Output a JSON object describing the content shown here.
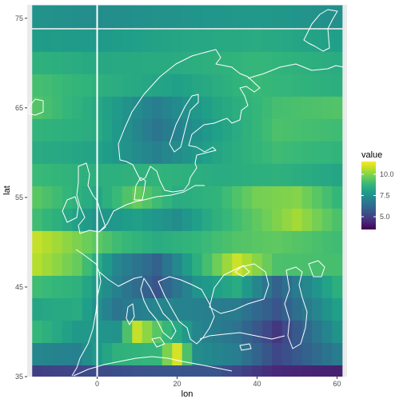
{
  "chart_data": {
    "type": "heatmap",
    "title": "",
    "xlabel": "lon",
    "ylabel": "lat",
    "xlim": [
      -17.5,
      62.5
    ],
    "ylim": [
      35,
      76.5
    ],
    "x_ticks": [
      0,
      20,
      40,
      60
    ],
    "x_tick_labels": [
      "0",
      "20",
      "40",
      "60"
    ],
    "y_ticks": [
      35,
      45,
      55,
      65,
      75
    ],
    "y_tick_labels": [
      "35",
      "45",
      "55",
      "65",
      "75"
    ],
    "cell_width_deg": 2.5,
    "cell_height_deg": 2.5,
    "x_centers": [
      -15,
      -12.5,
      -10,
      -7.5,
      -5,
      -2.5,
      0,
      2.5,
      5,
      7.5,
      10,
      12.5,
      15,
      17.5,
      20,
      22.5,
      25,
      27.5,
      30,
      32.5,
      35,
      37.5,
      40,
      42.5,
      45,
      47.5,
      50,
      52.5,
      55,
      57.5,
      60
    ],
    "lat_bands": [
      {
        "lat": 75.2,
        "lon_pts": [
          -15,
          0,
          20,
          40,
          60
        ],
        "vals": [
          7.6,
          7.4,
          7.6,
          7.8,
          7.5
        ]
      },
      {
        "lat": 72.5,
        "lon_pts": [
          -15,
          0,
          20,
          40,
          60
        ],
        "vals": [
          7.9,
          7.8,
          8.2,
          8.4,
          8.0
        ]
      },
      {
        "lat": 70,
        "lon_pts": [
          -15,
          0,
          20,
          40,
          60
        ],
        "vals": [
          8.6,
          8.3,
          8.4,
          8.8,
          8.4
        ]
      },
      {
        "lat": 67.5,
        "lon_pts": [
          -15,
          0,
          20,
          40,
          60
        ],
        "vals": [
          9.1,
          8.6,
          8.0,
          8.9,
          8.5
        ]
      },
      {
        "lat": 65,
        "lon_pts": [
          -15,
          0,
          15,
          30,
          45,
          60
        ],
        "vals": [
          9.3,
          8.3,
          6.9,
          8.2,
          9.1,
          9.3
        ]
      },
      {
        "lat": 62.5,
        "lon_pts": [
          -15,
          0,
          15,
          30,
          45,
          60
        ],
        "vals": [
          8.7,
          8.4,
          6.6,
          8.0,
          9.2,
          9.0
        ]
      },
      {
        "lat": 60,
        "lon_pts": [
          -15,
          0,
          15,
          30,
          45,
          60
        ],
        "vals": [
          8.4,
          8.1,
          7.0,
          8.2,
          9.0,
          8.7
        ]
      },
      {
        "lat": 57.5,
        "lon_pts": [
          -15,
          0,
          15,
          30,
          45,
          60
        ],
        "vals": [
          8.9,
          8.5,
          8.7,
          8.4,
          8.6,
          8.2
        ]
      },
      {
        "lat": 55,
        "lon_pts": [
          -15,
          0,
          10,
          20,
          30,
          40,
          50,
          60
        ],
        "vals": [
          9.4,
          8.2,
          9.6,
          8.4,
          8.7,
          9.8,
          10.0,
          8.8
        ]
      },
      {
        "lat": 52.5,
        "lon_pts": [
          -15,
          0,
          10,
          20,
          30,
          40,
          50,
          60
        ],
        "vals": [
          9.0,
          7.6,
          8.0,
          7.4,
          8.6,
          9.5,
          10.4,
          9.2
        ]
      },
      {
        "lat": 50,
        "lon_pts": [
          -15,
          -5,
          5,
          15,
          25,
          35,
          45,
          60
        ],
        "vals": [
          10.8,
          9.9,
          9.0,
          8.4,
          8.8,
          9.3,
          9.5,
          9.0
        ]
      },
      {
        "lat": 47.5,
        "lon_pts": [
          -15,
          -5,
          5,
          15,
          25,
          35,
          45,
          60
        ],
        "vals": [
          10.6,
          9.6,
          7.2,
          6.0,
          8.5,
          10.9,
          9.2,
          9.1
        ]
      },
      {
        "lat": 45,
        "lon_pts": [
          -15,
          -5,
          5,
          15,
          25,
          35,
          45,
          60
        ],
        "vals": [
          9.0,
          8.6,
          7.0,
          5.6,
          7.6,
          8.4,
          6.0,
          8.5
        ]
      },
      {
        "lat": 42.5,
        "lon_pts": [
          -15,
          -5,
          5,
          15,
          25,
          35,
          45,
          60
        ],
        "vals": [
          8.2,
          8.4,
          6.6,
          7.2,
          7.0,
          6.8,
          5.6,
          8.0
        ]
      },
      {
        "lat": 40,
        "lon_pts": [
          -15,
          -5,
          5,
          10,
          15,
          25,
          35,
          45,
          60
        ],
        "vals": [
          8.8,
          7.8,
          7.6,
          10.8,
          9.4,
          7.2,
          6.5,
          4.8,
          7.6
        ]
      },
      {
        "lat": 37.5,
        "lon_pts": [
          -15,
          -5,
          5,
          15,
          20,
          25,
          35,
          45,
          60
        ],
        "vals": [
          7.2,
          7.0,
          8.6,
          8.8,
          11.0,
          7.4,
          6.9,
          5.2,
          6.8
        ]
      },
      {
        "lat": 35,
        "lon_pts": [
          -15,
          0,
          15,
          30,
          45,
          60
        ],
        "vals": [
          5.0,
          5.3,
          5.6,
          5.6,
          4.4,
          4.2
        ]
      }
    ],
    "value_range": [
      3.5,
      11.5
    ],
    "colorscale": "viridis",
    "reference_line": {
      "x": 0,
      "label": ""
    }
  },
  "legend": {
    "title": "value",
    "labels": [
      "10.0",
      "7.5",
      "5.0"
    ],
    "values": [
      10.0,
      7.5,
      5.0
    ]
  },
  "colors": {
    "panel_bg": "#ebebeb",
    "grid": "#ffffff",
    "coastline": "#ffffff",
    "viridis_stops": [
      "#440154",
      "#482878",
      "#3e4a89",
      "#31688e",
      "#26828e",
      "#1f9e89",
      "#35b779",
      "#6ece58",
      "#b5de2b",
      "#fde725"
    ]
  }
}
